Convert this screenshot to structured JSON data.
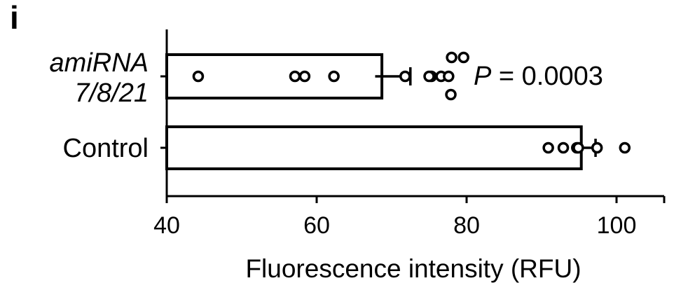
{
  "panel_label": "i",
  "chart_data": {
    "type": "bar",
    "orientation": "horizontal",
    "categories": [
      {
        "lines": [
          "amiRNA",
          "7/8/21"
        ],
        "italic": true
      },
      {
        "lines": [
          "Control"
        ],
        "italic": false
      }
    ],
    "values": [
      68.7,
      95.3
    ],
    "error_bars": [
      {
        "low": 67.8,
        "high": 72.5
      },
      {
        "low": 94.5,
        "high": 97.2
      }
    ],
    "points": [
      [
        44.2,
        57.1,
        58.4,
        62.3,
        71.8,
        75.3,
        76.6,
        77.6,
        77.9,
        78.0,
        79.6,
        75.0
      ],
      [
        90.9,
        92.9,
        94.7,
        97.4,
        101.1,
        94.9
      ]
    ],
    "xlabel": "Fluorescence intensity (RFU)",
    "xlim": [
      40,
      107
    ],
    "xticks": [
      "40",
      "60",
      "80",
      "100"
    ],
    "annotation": {
      "p_symbol": "P",
      "p_text": " = 0.0003"
    },
    "grid": false,
    "legend": "none"
  }
}
